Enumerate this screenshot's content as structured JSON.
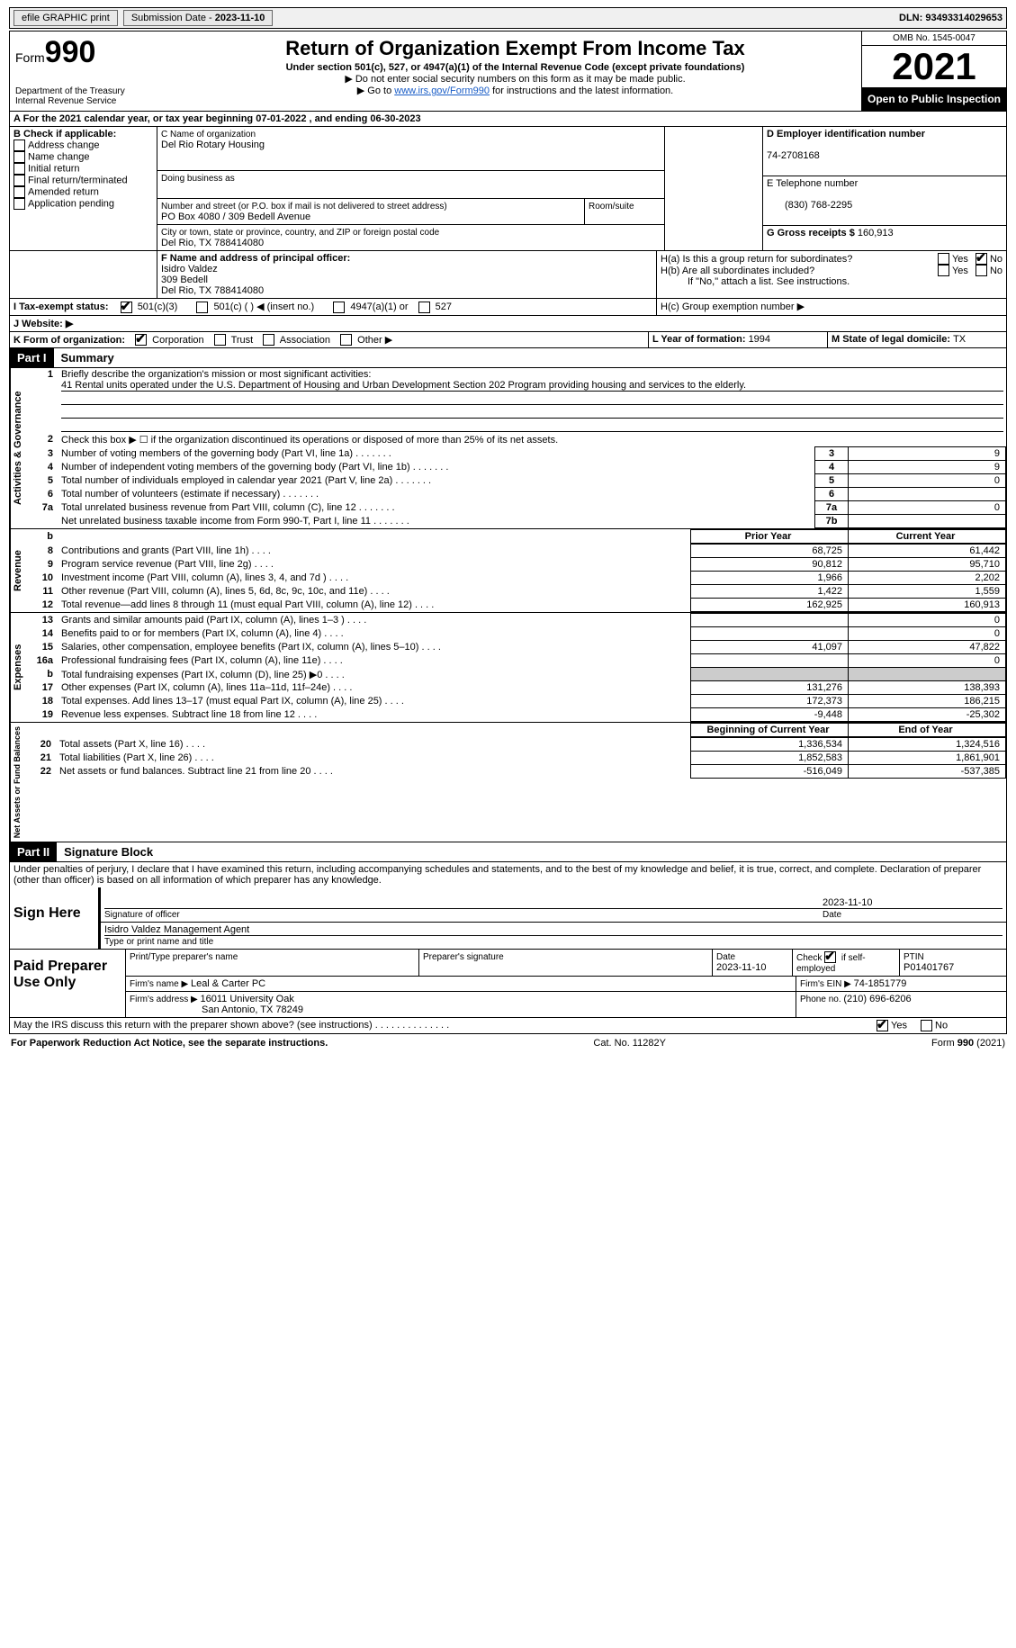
{
  "topbar": {
    "efile": "efile GRAPHIC print",
    "submission_label": "Submission Date - ",
    "submission_date": "2023-11-10",
    "dln_label": "DLN: ",
    "dln": "93493314029653"
  },
  "header": {
    "form_prefix": "Form",
    "form_number": "990",
    "dept": "Department of the Treasury",
    "irs": "Internal Revenue Service",
    "title": "Return of Organization Exempt From Income Tax",
    "subtitle": "Under section 501(c), 527, or 4947(a)(1) of the Internal Revenue Code (except private foundations)",
    "note1": "▶ Do not enter social security numbers on this form as it may be made public.",
    "note2_pre": "▶ Go to ",
    "note2_link": "www.irs.gov/Form990",
    "note2_post": " for instructions and the latest information.",
    "omb": "OMB No. 1545-0047",
    "year": "2021",
    "inspect": "Open to Public Inspection"
  },
  "sectionA": {
    "text_pre": "A For the 2021 calendar year, or tax year beginning ",
    "begin": "07-01-2022",
    "mid": " , and ending ",
    "end": "06-30-2023"
  },
  "sectionB": {
    "label": "B Check if applicable:",
    "opts": [
      "Address change",
      "Name change",
      "Initial return",
      "Final return/terminated",
      "Amended return",
      "Application pending"
    ]
  },
  "sectionC": {
    "label": "C Name of organization",
    "name": "Del Rio Rotary Housing",
    "dba_label": "Doing business as",
    "addr_label": "Number and street (or P.O. box if mail is not delivered to street address)",
    "room_label": "Room/suite",
    "addr": "PO Box 4080 / 309 Bedell Avenue",
    "city_label": "City or town, state or province, country, and ZIP or foreign postal code",
    "city": "Del Rio, TX  788414080"
  },
  "sectionD": {
    "label": "D Employer identification number",
    "value": "74-2708168"
  },
  "sectionE": {
    "label": "E Telephone number",
    "value": "(830) 768-2295"
  },
  "sectionG": {
    "label": "G Gross receipts $ ",
    "value": "160,913"
  },
  "sectionF": {
    "label": "F Name and address of principal officer:",
    "name": "Isidro Valdez",
    "addr1": "309 Bedell",
    "addr2": "Del Rio, TX  788414080"
  },
  "sectionH": {
    "a": "H(a)  Is this a group return for subordinates?",
    "b": "H(b)  Are all subordinates included?",
    "b_note": "If \"No,\" attach a list. See instructions.",
    "c": "H(c)  Group exemption number ▶",
    "yes": "Yes",
    "no": "No"
  },
  "sectionI": {
    "label": "I Tax-exempt status:",
    "opt1": "501(c)(3)",
    "opt2": "501(c) (  ) ◀ (insert no.)",
    "opt3": "4947(a)(1) or",
    "opt4": "527"
  },
  "sectionJ": {
    "label": "J  Website: ▶"
  },
  "sectionK": {
    "label": "K Form of organization:",
    "opts": [
      "Corporation",
      "Trust",
      "Association",
      "Other ▶"
    ]
  },
  "sectionL": {
    "label": "L Year of formation: ",
    "value": "1994"
  },
  "sectionM": {
    "label": "M State of legal domicile: ",
    "value": "TX"
  },
  "part1": {
    "header": "Part I",
    "title": "Summary",
    "line1_label": "Briefly describe the organization's mission or most significant activities:",
    "line1_text": "41 Rental units operated under the U.S. Department of Housing and Urban Development Section 202 Program providing housing and services to the elderly.",
    "line2": "Check this box ▶ ☐ if the organization discontinued its operations or disposed of more than 25% of its net assets.",
    "sidebar_activities": "Activities & Governance",
    "sidebar_revenue": "Revenue",
    "sidebar_expenses": "Expenses",
    "sidebar_netassets": "Net Assets or Fund Balances",
    "col_prior": "Prior Year",
    "col_current": "Current Year",
    "col_begin": "Beginning of Current Year",
    "col_end": "End of Year",
    "lines_gov": [
      {
        "n": "3",
        "t": "Number of voting members of the governing body (Part VI, line 1a)",
        "box": "3",
        "v": "9"
      },
      {
        "n": "4",
        "t": "Number of independent voting members of the governing body (Part VI, line 1b)",
        "box": "4",
        "v": "9"
      },
      {
        "n": "5",
        "t": "Total number of individuals employed in calendar year 2021 (Part V, line 2a)",
        "box": "5",
        "v": "0"
      },
      {
        "n": "6",
        "t": "Total number of volunteers (estimate if necessary)",
        "box": "6",
        "v": ""
      },
      {
        "n": "7a",
        "t": "Total unrelated business revenue from Part VIII, column (C), line 12",
        "box": "7a",
        "v": "0"
      },
      {
        "n": "",
        "t": "Net unrelated business taxable income from Form 990-T, Part I, line 11",
        "box": "7b",
        "v": ""
      }
    ],
    "lines_rev": [
      {
        "n": "8",
        "t": "Contributions and grants (Part VIII, line 1h)",
        "p": "68,725",
        "c": "61,442"
      },
      {
        "n": "9",
        "t": "Program service revenue (Part VIII, line 2g)",
        "p": "90,812",
        "c": "95,710"
      },
      {
        "n": "10",
        "t": "Investment income (Part VIII, column (A), lines 3, 4, and 7d )",
        "p": "1,966",
        "c": "2,202"
      },
      {
        "n": "11",
        "t": "Other revenue (Part VIII, column (A), lines 5, 6d, 8c, 9c, 10c, and 11e)",
        "p": "1,422",
        "c": "1,559"
      },
      {
        "n": "12",
        "t": "Total revenue—add lines 8 through 11 (must equal Part VIII, column (A), line 12)",
        "p": "162,925",
        "c": "160,913"
      }
    ],
    "lines_exp": [
      {
        "n": "13",
        "t": "Grants and similar amounts paid (Part IX, column (A), lines 1–3 )",
        "p": "",
        "c": "0"
      },
      {
        "n": "14",
        "t": "Benefits paid to or for members (Part IX, column (A), line 4)",
        "p": "",
        "c": "0"
      },
      {
        "n": "15",
        "t": "Salaries, other compensation, employee benefits (Part IX, column (A), lines 5–10)",
        "p": "41,097",
        "c": "47,822"
      },
      {
        "n": "16a",
        "t": "Professional fundraising fees (Part IX, column (A), line 11e)",
        "p": "",
        "c": "0"
      },
      {
        "n": "b",
        "t": "Total fundraising expenses (Part IX, column (D), line 25) ▶0",
        "p": "SHADE",
        "c": "SHADE"
      },
      {
        "n": "17",
        "t": "Other expenses (Part IX, column (A), lines 11a–11d, 11f–24e)",
        "p": "131,276",
        "c": "138,393"
      },
      {
        "n": "18",
        "t": "Total expenses. Add lines 13–17 (must equal Part IX, column (A), line 25)",
        "p": "172,373",
        "c": "186,215"
      },
      {
        "n": "19",
        "t": "Revenue less expenses. Subtract line 18 from line 12",
        "p": "-9,448",
        "c": "-25,302"
      }
    ],
    "lines_net": [
      {
        "n": "20",
        "t": "Total assets (Part X, line 16)",
        "p": "1,336,534",
        "c": "1,324,516"
      },
      {
        "n": "21",
        "t": "Total liabilities (Part X, line 26)",
        "p": "1,852,583",
        "c": "1,861,901"
      },
      {
        "n": "22",
        "t": "Net assets or fund balances. Subtract line 21 from line 20",
        "p": "-516,049",
        "c": "-537,385"
      }
    ]
  },
  "part2": {
    "header": "Part II",
    "title": "Signature Block",
    "declaration": "Under penalties of perjury, I declare that I have examined this return, including accompanying schedules and statements, and to the best of my knowledge and belief, it is true, correct, and complete. Declaration of preparer (other than officer) is based on all information of which preparer has any knowledge.",
    "sign_here": "Sign Here",
    "sig_officer": "Signature of officer",
    "sig_date": "2023-11-10",
    "date_label": "Date",
    "officer_name": "Isidro Valdez  Management Agent",
    "type_name": "Type or print name and title",
    "paid": "Paid Preparer Use Only",
    "prep_name_label": "Print/Type preparer's name",
    "prep_sig_label": "Preparer's signature",
    "prep_date_label": "Date",
    "prep_date": "2023-11-10",
    "check_self": "Check ☑ if self-employed",
    "ptin_label": "PTIN",
    "ptin": "P01401767",
    "firm_name_label": "Firm's name    ▶ ",
    "firm_name": "Leal & Carter PC",
    "firm_ein_label": "Firm's EIN ▶ ",
    "firm_ein": "74-1851779",
    "firm_addr_label": "Firm's address ▶ ",
    "firm_addr1": "16011 University Oak",
    "firm_addr2": "San Antonio, TX  78249",
    "phone_label": "Phone no. ",
    "phone": "(210) 696-6206",
    "discuss": "May the IRS discuss this return with the preparer shown above? (see instructions)",
    "yes": "Yes",
    "no": "No"
  },
  "footer": {
    "left": "For Paperwork Reduction Act Notice, see the separate instructions.",
    "mid": "Cat. No. 11282Y",
    "right": "Form 990 (2021)"
  }
}
